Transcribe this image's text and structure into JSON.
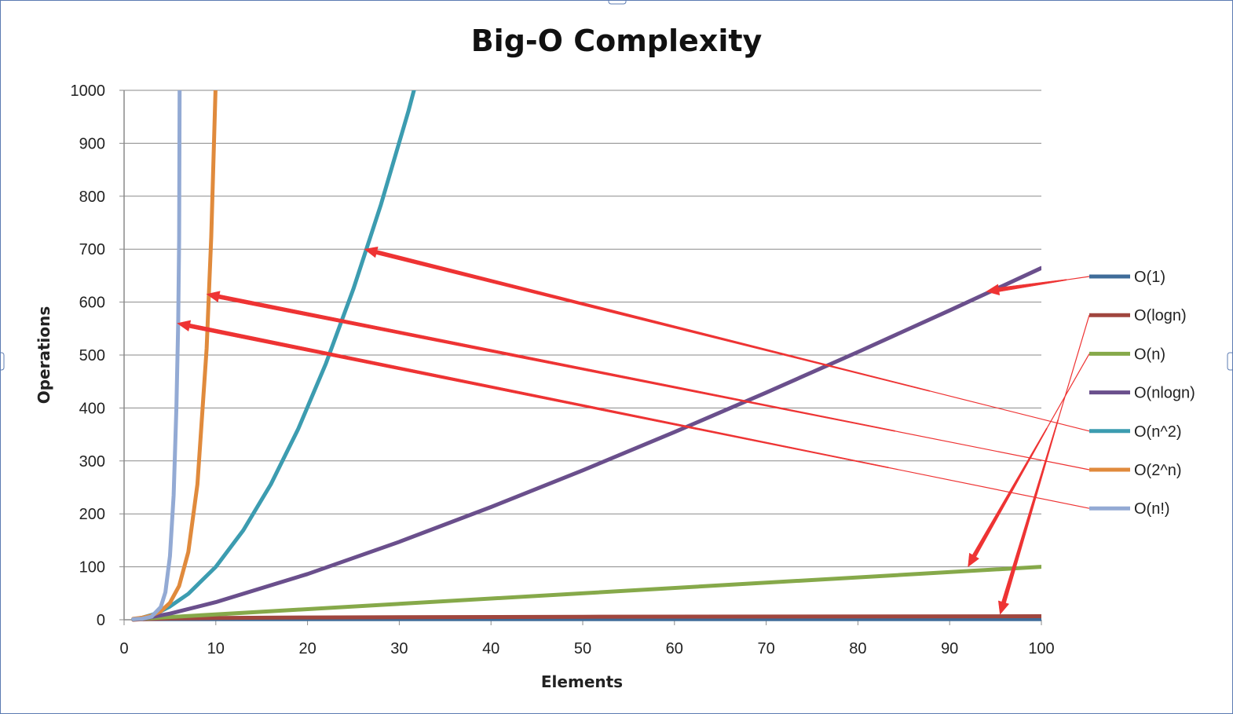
{
  "chart_data": {
    "type": "line",
    "title": "Big-O Complexity",
    "xlabel": "Elements",
    "ylabel": "Operations",
    "xlim": [
      0,
      100
    ],
    "ylim": [
      0,
      1000
    ],
    "xticks": [
      "0",
      "10",
      "20",
      "30",
      "40",
      "50",
      "60",
      "70",
      "80",
      "90",
      "100"
    ],
    "yticks": [
      "0",
      "100",
      "200",
      "300",
      "400",
      "500",
      "600",
      "700",
      "800",
      "900",
      "1000"
    ],
    "grid": true,
    "legend_position": "right",
    "series": [
      {
        "name": "O(1)",
        "color": "#3f6c99",
        "x": [
          1,
          100
        ],
        "y": [
          1,
          1
        ]
      },
      {
        "name": "O(logn)",
        "color": "#a0463e",
        "x": [
          1,
          2,
          5,
          10,
          20,
          50,
          100
        ],
        "y": [
          0,
          1,
          2.32,
          3.32,
          4.32,
          5.64,
          6.64
        ]
      },
      {
        "name": "O(n)",
        "color": "#86a94a",
        "x": [
          1,
          100
        ],
        "y": [
          1,
          100
        ]
      },
      {
        "name": "O(nlogn)",
        "color": "#6a4f8c",
        "x": [
          2,
          5,
          10,
          20,
          30,
          40,
          50,
          60,
          70,
          80,
          90,
          100
        ],
        "y": [
          2,
          11.6,
          33.2,
          86.4,
          147.2,
          212.9,
          282.2,
          354.4,
          429.1,
          505.8,
          584.3,
          664.4
        ]
      },
      {
        "name": "O(n^2)",
        "color": "#3c9cb0",
        "x": [
          1,
          2,
          3,
          4,
          5,
          7,
          10,
          13,
          16,
          19,
          22,
          25,
          28,
          31,
          31.6
        ],
        "y": [
          1,
          4,
          9,
          16,
          25,
          49,
          100,
          169,
          256,
          361,
          484,
          625,
          784,
          961,
          1000
        ]
      },
      {
        "name": "O(2^n)",
        "color": "#e08a3c",
        "x": [
          1,
          2,
          3,
          4,
          5,
          6,
          7,
          8,
          9,
          9.5,
          9.97
        ],
        "y": [
          2,
          4,
          8,
          16,
          32,
          64,
          128,
          256,
          512,
          724,
          1000
        ]
      },
      {
        "name": "O(n!)",
        "color": "#93aad4",
        "x": [
          1,
          2,
          3,
          4,
          4.5,
          5,
          5.4,
          5.7,
          5.9,
          6
        ],
        "y": [
          1,
          2,
          6,
          24,
          52,
          120,
          235,
          400,
          560,
          720
        ]
      }
    ],
    "series_end_extension": {
      "O(n!)": {
        "x": 6.05,
        "y": 1000
      }
    },
    "annotations": {
      "thick_arrows": [
        {
          "from_series": "O(nlogn)",
          "tip": {
            "x": 94,
            "y": 620
          },
          "tail_legend": 0
        },
        {
          "from_series": "O(n^2)",
          "tip": {
            "x": 26.2,
            "y": 700
          },
          "tail_legend": 4
        },
        {
          "from_series": "O(2^n)",
          "tip": {
            "x": 9,
            "y": 615
          },
          "tail_legend": 5
        },
        {
          "from_series": "O(n!)",
          "tip": {
            "x": 5.8,
            "y": 560
          },
          "tail_legend": 6
        },
        {
          "from_series": "O(n)",
          "tip": {
            "x": 92,
            "y": 100
          },
          "tail_legend": 2
        },
        {
          "from_series": "O(logn)",
          "tip": {
            "x": 95.5,
            "y": 10
          },
          "tail_legend": 1
        }
      ],
      "color": "#ee3333"
    }
  }
}
